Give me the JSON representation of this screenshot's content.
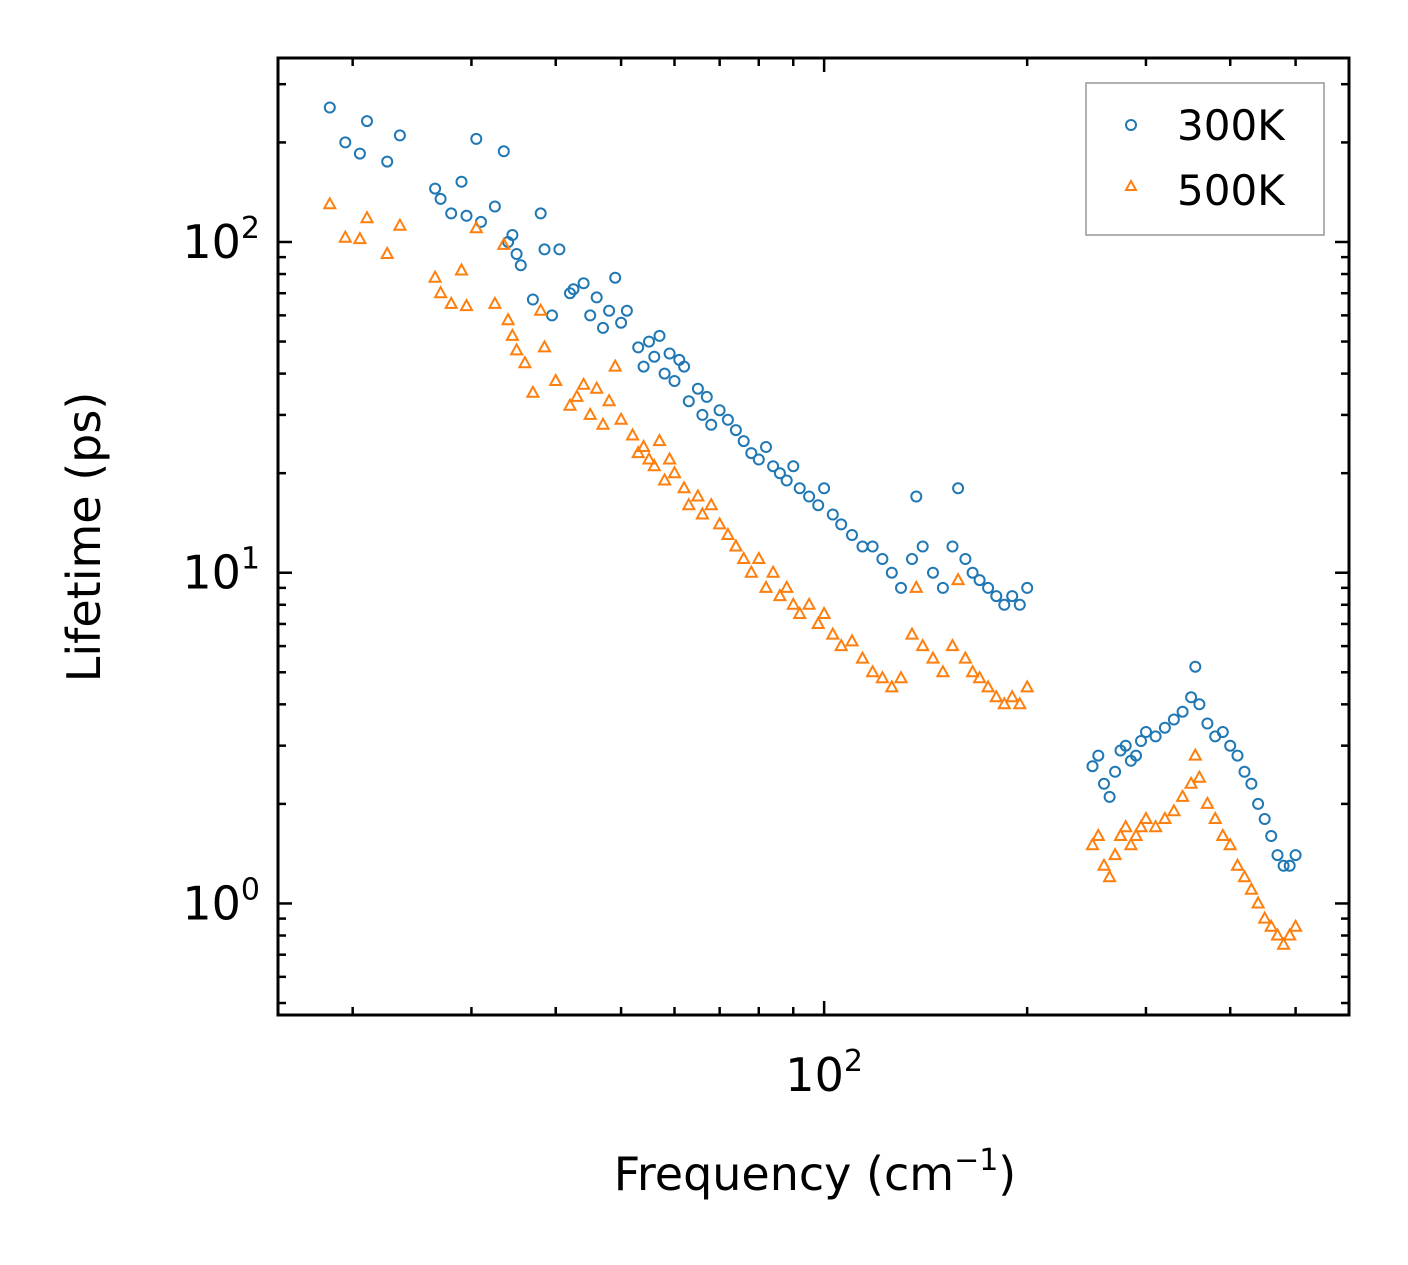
{
  "chart_data": {
    "type": "scatter",
    "title": "",
    "xlabel": {
      "text": "Frequency (cm",
      "sup": "−1",
      "suffix": ")"
    },
    "ylabel": "Lifetime (ps)",
    "xscale": "log",
    "yscale": "log",
    "xlim": [
      15.5,
      600
    ],
    "ylim": [
      0.46,
      360
    ],
    "x_ticks": [
      {
        "value": 100,
        "base": "10",
        "exp": "2"
      }
    ],
    "y_ticks": [
      {
        "value": 1,
        "base": "10",
        "exp": "0"
      },
      {
        "value": 10,
        "base": "10",
        "exp": "1"
      },
      {
        "value": 100,
        "base": "10",
        "exp": "2"
      }
    ],
    "grid": false,
    "legend_position": "top-right",
    "series": [
      {
        "name": "300K",
        "marker": "circle",
        "color": "#1f77b4",
        "values": [
          [
            18.5,
            255
          ],
          [
            19.5,
            200
          ],
          [
            20.5,
            185
          ],
          [
            21.0,
            232
          ],
          [
            22.5,
            175
          ],
          [
            23.5,
            210
          ],
          [
            26.5,
            145
          ],
          [
            27.0,
            135
          ],
          [
            28.0,
            122
          ],
          [
            29.0,
            152
          ],
          [
            29.5,
            120
          ],
          [
            30.5,
            205
          ],
          [
            31.0,
            115
          ],
          [
            32.5,
            128
          ],
          [
            33.5,
            188
          ],
          [
            34.0,
            100
          ],
          [
            34.5,
            105
          ],
          [
            35.0,
            92
          ],
          [
            35.5,
            85
          ],
          [
            37.0,
            67
          ],
          [
            38.0,
            122
          ],
          [
            38.5,
            95
          ],
          [
            39.5,
            60
          ],
          [
            40.5,
            95
          ],
          [
            42.0,
            70
          ],
          [
            42.5,
            72
          ],
          [
            44.0,
            75
          ],
          [
            45.0,
            60
          ],
          [
            46.0,
            68
          ],
          [
            47.0,
            55
          ],
          [
            48.0,
            62
          ],
          [
            49.0,
            78
          ],
          [
            50.0,
            57
          ],
          [
            51.0,
            62
          ],
          [
            53.0,
            48
          ],
          [
            54.0,
            42
          ],
          [
            55.0,
            50
          ],
          [
            56.0,
            45
          ],
          [
            57.0,
            52
          ],
          [
            58.0,
            40
          ],
          [
            59.0,
            46
          ],
          [
            60.0,
            38
          ],
          [
            61.0,
            44
          ],
          [
            62.0,
            42
          ],
          [
            63.0,
            33
          ],
          [
            65.0,
            36
          ],
          [
            66.0,
            30
          ],
          [
            67.0,
            34
          ],
          [
            68.0,
            28
          ],
          [
            70.0,
            31
          ],
          [
            72.0,
            29
          ],
          [
            74.0,
            27
          ],
          [
            76.0,
            25
          ],
          [
            78.0,
            23
          ],
          [
            80.0,
            22
          ],
          [
            82.0,
            24
          ],
          [
            84.0,
            21
          ],
          [
            86.0,
            20
          ],
          [
            88.0,
            19
          ],
          [
            90.0,
            21
          ],
          [
            92.0,
            18
          ],
          [
            95.0,
            17
          ],
          [
            98.0,
            16
          ],
          [
            100.0,
            18
          ],
          [
            103.0,
            15
          ],
          [
            106.0,
            14
          ],
          [
            110.0,
            13
          ],
          [
            114.0,
            12
          ],
          [
            118.0,
            12
          ],
          [
            122.0,
            11
          ],
          [
            126.0,
            10
          ],
          [
            130.0,
            9
          ],
          [
            135.0,
            11
          ],
          [
            137.0,
            17
          ],
          [
            140.0,
            12
          ],
          [
            145.0,
            10
          ],
          [
            150.0,
            9
          ],
          [
            155.0,
            12
          ],
          [
            158.0,
            18
          ],
          [
            162.0,
            11
          ],
          [
            166.0,
            10
          ],
          [
            170.0,
            9.5
          ],
          [
            175.0,
            9
          ],
          [
            180.0,
            8.5
          ],
          [
            185.0,
            8
          ],
          [
            190.0,
            8.5
          ],
          [
            195.0,
            8
          ],
          [
            200.0,
            9
          ],
          [
            250.0,
            2.6
          ],
          [
            255.0,
            2.8
          ],
          [
            260.0,
            2.3
          ],
          [
            265.0,
            2.1
          ],
          [
            270.0,
            2.5
          ],
          [
            275.0,
            2.9
          ],
          [
            280.0,
            3.0
          ],
          [
            285.0,
            2.7
          ],
          [
            290.0,
            2.8
          ],
          [
            295.0,
            3.1
          ],
          [
            300.0,
            3.3
          ],
          [
            310.0,
            3.2
          ],
          [
            320.0,
            3.4
          ],
          [
            330.0,
            3.6
          ],
          [
            340.0,
            3.8
          ],
          [
            350.0,
            4.2
          ],
          [
            355.0,
            5.2
          ],
          [
            360.0,
            4.0
          ],
          [
            370.0,
            3.5
          ],
          [
            380.0,
            3.2
          ],
          [
            390.0,
            3.3
          ],
          [
            400.0,
            3.0
          ],
          [
            410.0,
            2.8
          ],
          [
            420.0,
            2.5
          ],
          [
            430.0,
            2.3
          ],
          [
            440.0,
            2.0
          ],
          [
            450.0,
            1.8
          ],
          [
            460.0,
            1.6
          ],
          [
            470.0,
            1.4
          ],
          [
            480.0,
            1.3
          ],
          [
            490.0,
            1.3
          ],
          [
            500.0,
            1.4
          ]
        ]
      },
      {
        "name": "500K",
        "marker": "triangle",
        "color": "#ff7f0e",
        "values": [
          [
            18.5,
            130
          ],
          [
            19.5,
            103
          ],
          [
            20.5,
            102
          ],
          [
            21.0,
            118
          ],
          [
            22.5,
            92
          ],
          [
            23.5,
            112
          ],
          [
            26.5,
            78
          ],
          [
            27.0,
            70
          ],
          [
            28.0,
            65
          ],
          [
            29.0,
            82
          ],
          [
            29.5,
            64
          ],
          [
            30.5,
            110
          ],
          [
            32.5,
            65
          ],
          [
            33.5,
            98
          ],
          [
            34.0,
            58
          ],
          [
            34.5,
            52
          ],
          [
            35.0,
            47
          ],
          [
            36.0,
            43
          ],
          [
            37.0,
            35
          ],
          [
            38.0,
            62
          ],
          [
            38.5,
            48
          ],
          [
            40.0,
            38
          ],
          [
            42.0,
            32
          ],
          [
            43.0,
            34
          ],
          [
            44.0,
            37
          ],
          [
            45.0,
            30
          ],
          [
            46.0,
            36
          ],
          [
            47.0,
            28
          ],
          [
            48.0,
            33
          ],
          [
            49.0,
            42
          ],
          [
            50.0,
            29
          ],
          [
            52.0,
            26
          ],
          [
            53.0,
            23
          ],
          [
            54.0,
            24
          ],
          [
            55.0,
            22
          ],
          [
            56.0,
            21
          ],
          [
            57.0,
            25
          ],
          [
            58.0,
            19
          ],
          [
            59.0,
            22
          ],
          [
            60.0,
            20
          ],
          [
            62.0,
            18
          ],
          [
            63.0,
            16
          ],
          [
            65.0,
            17
          ],
          [
            66.0,
            15
          ],
          [
            68.0,
            16
          ],
          [
            70.0,
            14
          ],
          [
            72.0,
            13
          ],
          [
            74.0,
            12
          ],
          [
            76.0,
            11
          ],
          [
            78.0,
            10
          ],
          [
            80.0,
            11
          ],
          [
            82.0,
            9
          ],
          [
            84.0,
            10
          ],
          [
            86.0,
            8.5
          ],
          [
            88.0,
            9
          ],
          [
            90.0,
            8
          ],
          [
            92.0,
            7.5
          ],
          [
            95.0,
            8
          ],
          [
            98.0,
            7
          ],
          [
            100.0,
            7.5
          ],
          [
            103.0,
            6.5
          ],
          [
            106.0,
            6
          ],
          [
            110.0,
            6.2
          ],
          [
            114.0,
            5.5
          ],
          [
            118.0,
            5
          ],
          [
            122.0,
            4.8
          ],
          [
            126.0,
            4.5
          ],
          [
            130.0,
            4.8
          ],
          [
            135.0,
            6.5
          ],
          [
            137.0,
            9
          ],
          [
            140.0,
            6
          ],
          [
            145.0,
            5.5
          ],
          [
            150.0,
            5
          ],
          [
            155.0,
            6
          ],
          [
            158.0,
            9.5
          ],
          [
            162.0,
            5.5
          ],
          [
            166.0,
            5
          ],
          [
            170.0,
            4.8
          ],
          [
            175.0,
            4.5
          ],
          [
            180.0,
            4.2
          ],
          [
            185.0,
            4
          ],
          [
            190.0,
            4.2
          ],
          [
            195.0,
            4
          ],
          [
            200.0,
            4.5
          ],
          [
            250.0,
            1.5
          ],
          [
            255.0,
            1.6
          ],
          [
            260.0,
            1.3
          ],
          [
            265.0,
            1.2
          ],
          [
            270.0,
            1.4
          ],
          [
            275.0,
            1.6
          ],
          [
            280.0,
            1.7
          ],
          [
            285.0,
            1.5
          ],
          [
            290.0,
            1.6
          ],
          [
            295.0,
            1.7
          ],
          [
            300.0,
            1.8
          ],
          [
            310.0,
            1.7
          ],
          [
            320.0,
            1.8
          ],
          [
            330.0,
            1.9
          ],
          [
            340.0,
            2.1
          ],
          [
            350.0,
            2.3
          ],
          [
            355.0,
            2.8
          ],
          [
            360.0,
            2.4
          ],
          [
            370.0,
            2.0
          ],
          [
            380.0,
            1.8
          ],
          [
            390.0,
            1.6
          ],
          [
            400.0,
            1.5
          ],
          [
            410.0,
            1.3
          ],
          [
            420.0,
            1.2
          ],
          [
            430.0,
            1.1
          ],
          [
            440.0,
            1.0
          ],
          [
            450.0,
            0.9
          ],
          [
            460.0,
            0.85
          ],
          [
            470.0,
            0.8
          ],
          [
            480.0,
            0.75
          ],
          [
            490.0,
            0.8
          ],
          [
            500.0,
            0.85
          ]
        ]
      }
    ]
  }
}
